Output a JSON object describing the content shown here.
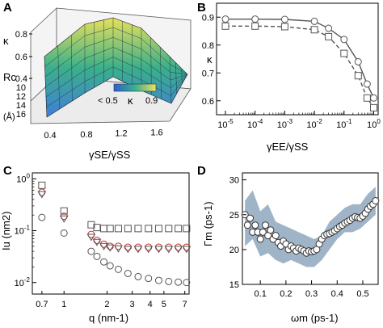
{
  "colors": {
    "surface_low": "#3f7fd8",
    "surface_mid": "#3bb08a",
    "surface_high": "#e8e05a",
    "markers": "#555555",
    "red": "#d22a20",
    "band": "#8ea7bd"
  },
  "panels": [
    {
      "id": "A",
      "label": "A"
    },
    {
      "id": "B",
      "label": "B"
    },
    {
      "id": "C",
      "label": "C"
    },
    {
      "id": "D",
      "label": "D"
    }
  ],
  "chart_data": [
    {
      "panel": "A",
      "type": "surface3d",
      "zlabel": "κ",
      "zticks": [
        "0.4",
        "0.6",
        "0.8"
      ],
      "ylabel": "Rc",
      "ylabel_unit": "(Å)",
      "yticks": [
        "10",
        "12",
        "14",
        "16"
      ],
      "xlabel": "γSE/γSS",
      "xticks": [
        "0.4",
        "0.8",
        "1.2",
        "1.6"
      ],
      "x_range": [
        0.2,
        1.8
      ],
      "y_range": [
        10,
        16
      ],
      "z_range": [
        0.4,
        0.9
      ],
      "colorbar": {
        "label": "κ",
        "min_label": "< 0.5",
        "max_label": "0.9"
      }
    },
    {
      "panel": "B",
      "type": "line",
      "xscale": "log",
      "xlabel": "γEE/γSS",
      "ylabel": "κ",
      "xticks": [
        "10-5",
        "10-4",
        "10-3",
        "10-2",
        "10-1",
        "100"
      ],
      "yticks": [
        "0.6",
        "0.7",
        "0.8",
        "0.9"
      ],
      "ylim": [
        0.55,
        0.95
      ],
      "series": [
        {
          "marker": "circle",
          "line": "solid",
          "x": [
            1e-05,
            0.0001,
            0.001,
            0.01,
            0.03,
            0.1,
            0.3,
            0.6,
            1.0
          ],
          "y": [
            0.893,
            0.893,
            0.892,
            0.885,
            0.86,
            0.82,
            0.74,
            0.66,
            0.61
          ]
        },
        {
          "marker": "square",
          "line": "dashed",
          "x": [
            1e-05,
            0.0001,
            0.001,
            0.01,
            0.03,
            0.1,
            0.3,
            0.6,
            1.0
          ],
          "y": [
            0.868,
            0.868,
            0.866,
            0.855,
            0.83,
            0.77,
            0.69,
            0.61,
            0.575
          ]
        }
      ]
    },
    {
      "panel": "C",
      "type": "scatter",
      "xscale": "log",
      "yscale": "log",
      "xlabel": "q (nm-1)",
      "ylabel": "Iu (nm2)",
      "xticks": [
        "0.7",
        "1",
        "2",
        "3",
        "4",
        "5",
        "7"
      ],
      "yticks": [
        "10-2",
        "10-1",
        "100"
      ],
      "xlim": [
        0.6,
        7.5
      ],
      "ylim": [
        0.006,
        1.3
      ],
      "series": [
        {
          "marker": "square",
          "color": "#555555",
          "x": [
            0.7,
            1.0,
            1.55,
            1.7,
            1.9,
            2.1,
            2.4,
            2.8,
            3.3,
            3.9,
            4.6,
            5.4,
            6.3,
            7.2
          ],
          "y": [
            0.75,
            0.24,
            0.13,
            0.115,
            0.11,
            0.11,
            0.11,
            0.11,
            0.11,
            0.11,
            0.11,
            0.11,
            0.11,
            0.11
          ]
        },
        {
          "marker": "circle",
          "color": "#d22a20",
          "x": [
            0.7,
            1.0,
            1.55,
            1.7,
            1.9,
            2.1,
            2.4,
            2.8,
            3.3,
            3.9,
            4.6,
            5.4,
            6.3,
            7.2
          ],
          "y": [
            0.55,
            0.19,
            0.085,
            0.065,
            0.055,
            0.05,
            0.05,
            0.048,
            0.048,
            0.048,
            0.048,
            0.048,
            0.048,
            0.048
          ]
        },
        {
          "marker": "triangle-down",
          "color": "#555555",
          "x": [
            0.7,
            1.0,
            1.55,
            1.7,
            1.9,
            2.1,
            2.4,
            2.8,
            3.3,
            3.9,
            4.6,
            5.4,
            6.3,
            7.2
          ],
          "y": [
            0.5,
            0.17,
            0.075,
            0.06,
            0.05,
            0.047,
            0.045,
            0.044,
            0.044,
            0.044,
            0.044,
            0.044,
            0.044,
            0.044
          ]
        },
        {
          "marker": "circle",
          "color": "#555555",
          "x": [
            0.7,
            1.0,
            1.55,
            1.7,
            1.9,
            2.1,
            2.4,
            2.8,
            3.3,
            3.9,
            4.6,
            5.4,
            6.3,
            7.2
          ],
          "y": [
            0.18,
            0.09,
            0.04,
            0.032,
            0.025,
            0.021,
            0.018,
            0.015,
            0.013,
            0.012,
            0.011,
            0.0105,
            0.0102,
            0.01
          ]
        }
      ]
    },
    {
      "panel": "D",
      "type": "scatter",
      "xlabel": "ωm (ps-1)",
      "ylabel": "Γm (ps-1)",
      "xticks": [
        "0.1",
        "0.2",
        "0.3",
        "0.4",
        "0.5"
      ],
      "yticks": [
        "15",
        "20",
        "25",
        "30"
      ],
      "xlim": [
        0.03,
        0.56
      ],
      "ylim": [
        15,
        31
      ],
      "band": {
        "x": [
          0.04,
          0.07,
          0.1,
          0.13,
          0.16,
          0.19,
          0.22,
          0.25,
          0.28,
          0.31,
          0.34,
          0.37,
          0.4,
          0.43,
          0.46,
          0.49,
          0.52,
          0.55
        ],
        "upper": [
          27,
          28.5,
          25.5,
          26.5,
          24,
          23.5,
          23,
          22.5,
          22,
          21.5,
          22,
          24,
          25,
          26,
          26.5,
          26.5,
          28,
          29
        ],
        "lower": [
          20.5,
          21.5,
          19,
          19.5,
          18.5,
          18,
          18.5,
          18,
          17.5,
          17.5,
          18.5,
          20,
          21.5,
          22.5,
          22.5,
          23,
          24,
          25
        ]
      },
      "series": [
        {
          "marker": "circle",
          "x": [
            0.04,
            0.05,
            0.06,
            0.07,
            0.08,
            0.09,
            0.1,
            0.11,
            0.12,
            0.13,
            0.14,
            0.15,
            0.16,
            0.17,
            0.18,
            0.19,
            0.2,
            0.21,
            0.22,
            0.23,
            0.24,
            0.25,
            0.26,
            0.27,
            0.28,
            0.29,
            0.3,
            0.31,
            0.32,
            0.33,
            0.34,
            0.35,
            0.36,
            0.37,
            0.38,
            0.39,
            0.4,
            0.41,
            0.42,
            0.43,
            0.44,
            0.45,
            0.46,
            0.47,
            0.48,
            0.49,
            0.5,
            0.51,
            0.52,
            0.53,
            0.54,
            0.55
          ],
          "y": [
            25,
            23.5,
            24.5,
            22.5,
            23.5,
            22.5,
            21.5,
            22.5,
            23.5,
            22,
            22.8,
            21.5,
            22,
            21,
            20.5,
            21.2,
            20.8,
            20,
            20.5,
            20.2,
            19.8,
            20.2,
            20,
            19.8,
            19.5,
            19.8,
            19.7,
            19.8,
            20,
            20.8,
            21.5,
            22,
            22.2,
            22.3,
            22.5,
            22.7,
            23,
            23.3,
            23.5,
            23.8,
            24,
            24.2,
            24.5,
            24.7,
            24.6,
            24.5,
            24.8,
            25.2,
            25.8,
            26.2,
            26.5,
            27
          ]
        }
      ]
    }
  ]
}
